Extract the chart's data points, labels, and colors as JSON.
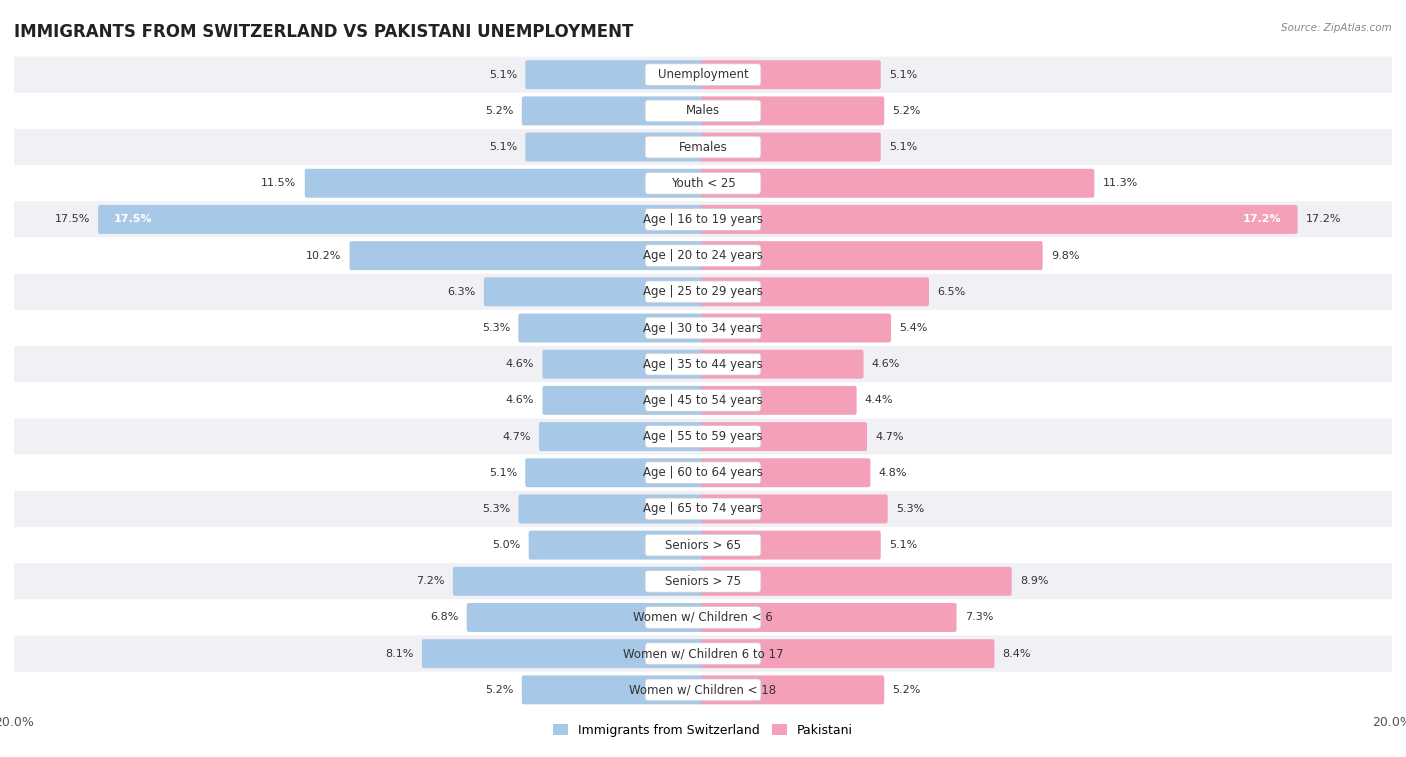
{
  "title": "IMMIGRANTS FROM SWITZERLAND VS PAKISTANI UNEMPLOYMENT",
  "source": "Source: ZipAtlas.com",
  "categories": [
    "Unemployment",
    "Males",
    "Females",
    "Youth < 25",
    "Age | 16 to 19 years",
    "Age | 20 to 24 years",
    "Age | 25 to 29 years",
    "Age | 30 to 34 years",
    "Age | 35 to 44 years",
    "Age | 45 to 54 years",
    "Age | 55 to 59 years",
    "Age | 60 to 64 years",
    "Age | 65 to 74 years",
    "Seniors > 65",
    "Seniors > 75",
    "Women w/ Children < 6",
    "Women w/ Children 6 to 17",
    "Women w/ Children < 18"
  ],
  "swiss_values": [
    5.1,
    5.2,
    5.1,
    11.5,
    17.5,
    10.2,
    6.3,
    5.3,
    4.6,
    4.6,
    4.7,
    5.1,
    5.3,
    5.0,
    7.2,
    6.8,
    8.1,
    5.2
  ],
  "pak_values": [
    5.1,
    5.2,
    5.1,
    11.3,
    17.2,
    9.8,
    6.5,
    5.4,
    4.6,
    4.4,
    4.7,
    4.8,
    5.3,
    5.1,
    8.9,
    7.3,
    8.4,
    5.2
  ],
  "swiss_color": "#a8c8e8",
  "pak_color": "#f4a0b8",
  "axis_max": 20.0,
  "bg_color": "#ffffff",
  "row_colors_odd": "#f0f0f5",
  "row_colors_even": "#ffffff",
  "title_fontsize": 12,
  "label_fontsize": 8.5,
  "value_fontsize": 8,
  "legend_swiss": "Immigrants from Switzerland",
  "legend_pak": "Pakistani"
}
